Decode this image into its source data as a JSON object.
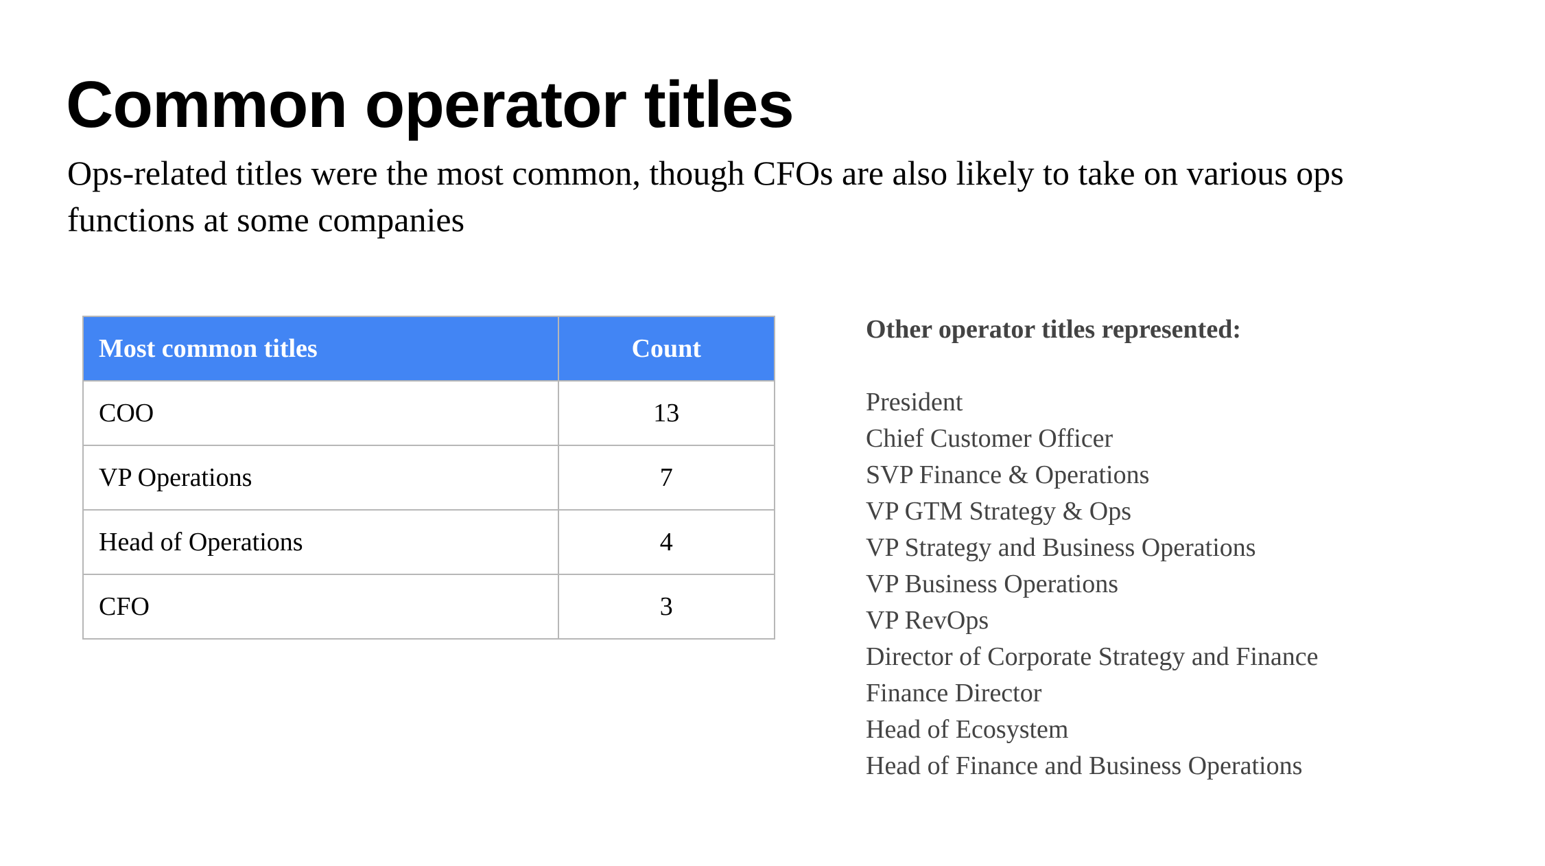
{
  "title": "Common operator titles",
  "subtitle": "Ops-related titles were the most common, though CFOs are also likely to take on various ops functions at some companies",
  "table": {
    "headers": [
      "Most common titles",
      "Count"
    ],
    "header_color": "#4285f4",
    "rows": [
      {
        "title": "COO",
        "count": "13"
      },
      {
        "title": "VP Operations",
        "count": "7"
      },
      {
        "title": "Head of Operations",
        "count": "4"
      },
      {
        "title": "CFO",
        "count": "3"
      }
    ]
  },
  "other_titles": {
    "heading": "Other operator titles represented:",
    "items": [
      "President",
      "Chief Customer Officer",
      "SVP Finance & Operations",
      "VP GTM Strategy & Ops",
      "VP Strategy and Business Operations",
      "VP Business Operations",
      "VP RevOps",
      "Director of Corporate Strategy and Finance",
      "Finance Director",
      "Head of Ecosystem",
      "Head of Finance and Business Operations"
    ]
  }
}
